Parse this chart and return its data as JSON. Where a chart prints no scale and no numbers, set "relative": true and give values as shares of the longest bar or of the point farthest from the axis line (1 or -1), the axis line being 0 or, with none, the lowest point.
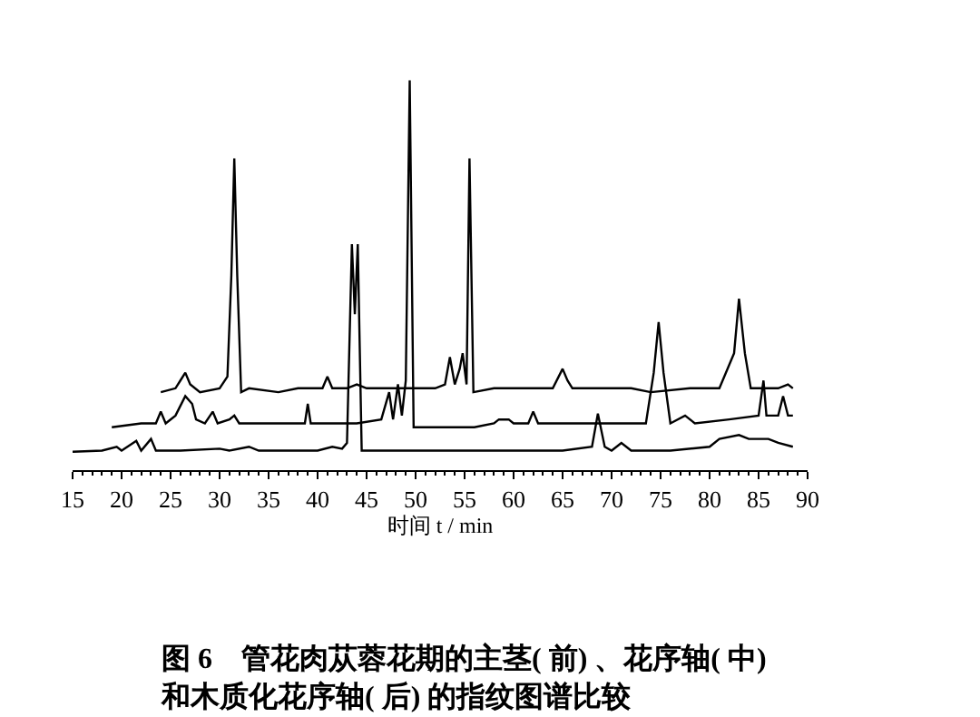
{
  "chart_data": {
    "type": "line",
    "relative": true,
    "xlabel": "时间 t / min",
    "xlim": [
      15,
      90
    ],
    "xticks": [
      15,
      20,
      25,
      30,
      35,
      40,
      45,
      50,
      55,
      60,
      65,
      70,
      75,
      80,
      85,
      90
    ],
    "marker": "none",
    "line_style": "solid",
    "annotations": [
      "图 6　管花肉苁蓉花期的主茎( 前) 、花序轴( 中)\n和木质化花序轴( 后) 的指纹图谱比较"
    ],
    "series": [
      {
        "color": "#000000",
        "x": [
          24,
          25.5,
          26,
          26.5,
          27,
          28,
          30,
          30.8,
          31.2,
          31.5,
          31.8,
          32.2,
          33,
          36,
          38,
          40.5,
          41,
          41.5,
          43,
          44,
          45,
          50,
          52,
          53,
          53.5,
          54,
          54.5,
          54.8,
          55.2,
          55.5,
          55.9,
          58,
          62,
          64,
          65,
          65.5,
          66,
          70,
          72,
          74,
          78,
          81,
          82.5,
          83,
          83.6,
          84.2,
          87,
          88,
          88.5
        ],
        "values": [
          0.2,
          0.21,
          0.23,
          0.25,
          0.22,
          0.2,
          0.21,
          0.24,
          0.5,
          0.8,
          0.5,
          0.2,
          0.21,
          0.2,
          0.21,
          0.21,
          0.24,
          0.21,
          0.21,
          0.22,
          0.21,
          0.21,
          0.21,
          0.22,
          0.29,
          0.22,
          0.26,
          0.3,
          0.22,
          0.8,
          0.2,
          0.21,
          0.21,
          0.21,
          0.26,
          0.23,
          0.21,
          0.21,
          0.21,
          0.2,
          0.21,
          0.21,
          0.3,
          0.44,
          0.3,
          0.21,
          0.21,
          0.22,
          0.21
        ]
      },
      {
        "color": "#000000",
        "x": [
          19,
          22,
          23.5,
          24,
          24.5,
          25.5,
          26.5,
          27.2,
          27.6,
          28.5,
          29.3,
          29.8,
          31,
          31.5,
          32,
          36,
          38.7,
          39,
          39.3,
          44,
          46.5,
          47.3,
          47.7,
          48.2,
          48.6,
          49,
          49.4,
          49.8,
          52,
          56,
          58,
          58.5,
          59.5,
          60,
          61.5,
          62,
          62.5,
          70,
          73.5,
          74.3,
          74.8,
          75.3,
          76,
          77.5,
          78.5,
          82,
          85,
          85.5,
          85.8,
          87,
          87.5,
          88,
          88.5
        ],
        "values": [
          0.11,
          0.12,
          0.12,
          0.15,
          0.12,
          0.14,
          0.19,
          0.17,
          0.13,
          0.12,
          0.15,
          0.12,
          0.13,
          0.14,
          0.12,
          0.12,
          0.12,
          0.17,
          0.12,
          0.12,
          0.13,
          0.2,
          0.13,
          0.22,
          0.14,
          0.23,
          1.0,
          0.11,
          0.11,
          0.11,
          0.12,
          0.13,
          0.13,
          0.12,
          0.12,
          0.15,
          0.12,
          0.12,
          0.12,
          0.25,
          0.38,
          0.25,
          0.12,
          0.14,
          0.12,
          0.13,
          0.14,
          0.23,
          0.14,
          0.14,
          0.19,
          0.14,
          0.14
        ]
      },
      {
        "color": "#000000",
        "x": [
          15,
          18,
          19.5,
          20,
          21.5,
          22,
          23,
          23.5,
          26,
          30,
          31,
          33,
          34,
          40,
          41.5,
          42.5,
          43,
          43.5,
          43.8,
          44.1,
          44.5,
          50,
          55,
          60,
          65,
          68,
          68.6,
          69.3,
          70,
          71,
          72,
          76,
          80,
          81,
          83,
          84,
          86,
          87,
          88.5
        ],
        "values": [
          0.047,
          0.05,
          0.06,
          0.05,
          0.075,
          0.05,
          0.08,
          0.05,
          0.05,
          0.055,
          0.05,
          0.06,
          0.05,
          0.05,
          0.06,
          0.055,
          0.07,
          0.58,
          0.4,
          0.58,
          0.05,
          0.05,
          0.05,
          0.05,
          0.05,
          0.06,
          0.145,
          0.06,
          0.05,
          0.07,
          0.05,
          0.05,
          0.06,
          0.08,
          0.09,
          0.08,
          0.08,
          0.07,
          0.06
        ]
      }
    ]
  }
}
